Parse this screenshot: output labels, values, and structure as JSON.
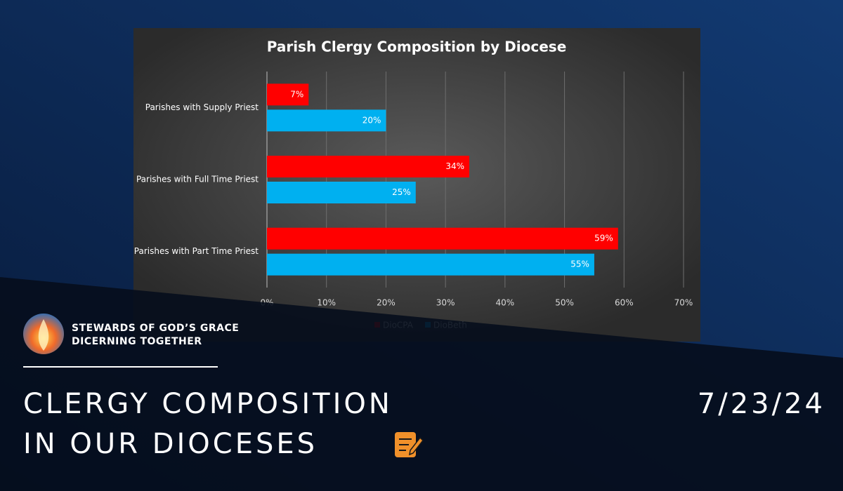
{
  "chart_data": {
    "type": "bar",
    "orientation": "horizontal",
    "title": "Parish Clergy Composition by Diocese",
    "categories": [
      "Parishes with Supply Priest",
      "Parishes with Full Time Priest",
      "Parishes with Part Time Priest"
    ],
    "series": [
      {
        "name": "DioCPA",
        "color": "#ff0000",
        "values": [
          7,
          34,
          59
        ],
        "value_labels": [
          "7%",
          "34%",
          "59%"
        ]
      },
      {
        "name": "DioBeth",
        "color": "#00b0f0",
        "values": [
          20,
          25,
          55
        ],
        "value_labels": [
          "20%",
          "25%",
          "55%"
        ]
      }
    ],
    "xlim": [
      0,
      70
    ],
    "xticks": [
      {
        "value": 0,
        "label": "0%"
      },
      {
        "value": 10,
        "label": "10%"
      },
      {
        "value": 20,
        "label": "20%"
      },
      {
        "value": 30,
        "label": "30%"
      },
      {
        "value": 40,
        "label": "40%"
      },
      {
        "value": 50,
        "label": "50%"
      },
      {
        "value": 60,
        "label": "60%"
      },
      {
        "value": 70,
        "label": "70%"
      }
    ],
    "grid": true,
    "legend": "bottom"
  },
  "slide": {
    "brand_lines": [
      "STEWARDS OF GOD’S GRACE",
      "DICERNING TOGETHER"
    ],
    "title_lines": [
      "CLERGY COMPOSITION",
      "IN OUR DIOCESES"
    ],
    "date": "7/23/24"
  }
}
